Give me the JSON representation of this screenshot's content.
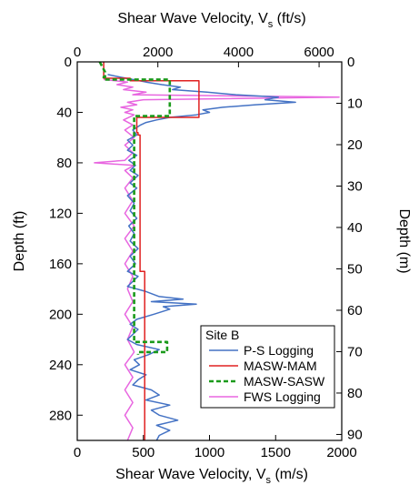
{
  "chart_data": {
    "type": "line",
    "title": "",
    "top_axis": {
      "label_main": "Shear Wave Velocity, V",
      "label_sub": "s",
      "label_unit": " (ft/s)",
      "range": [
        0,
        6562
      ],
      "ticks": [
        0,
        2000,
        4000,
        6000
      ],
      "tick_labels": [
        "0",
        "2000",
        "4000",
        "6000"
      ]
    },
    "bottom_axis": {
      "label_main": "Shear Wave Velocity, V",
      "label_sub": "s",
      "label_unit": " (m/s)",
      "range": [
        0,
        2000
      ],
      "ticks": [
        0,
        500,
        1000,
        1500,
        2000
      ],
      "tick_labels": [
        "0",
        "500",
        "1000",
        "1500",
        "2000"
      ]
    },
    "left_axis": {
      "label": "Depth (ft)",
      "range": [
        0,
        300
      ],
      "reversed": true,
      "ticks": [
        0,
        40,
        80,
        120,
        160,
        200,
        240,
        280
      ],
      "tick_labels": [
        "0",
        "40",
        "80",
        "120",
        "160",
        "200",
        "240",
        "280"
      ]
    },
    "right_axis": {
      "label": "Depth (m)",
      "range": [
        0,
        91.44
      ],
      "reversed": true,
      "ticks": [
        0,
        10,
        20,
        30,
        40,
        50,
        60,
        70,
        80,
        90
      ],
      "tick_labels": [
        "0",
        "10",
        "20",
        "30",
        "40",
        "50",
        "60",
        "70",
        "80",
        "90"
      ]
    },
    "legend": {
      "title": "Site B",
      "position": "lower-right"
    },
    "series": [
      {
        "name": "P-S Logging",
        "color": "#4472c4",
        "dash": "solid",
        "points": [
          [
            230,
            10
          ],
          [
            320,
            12
          ],
          [
            420,
            14
          ],
          [
            520,
            16
          ],
          [
            640,
            18
          ],
          [
            780,
            20
          ],
          [
            720,
            22
          ],
          [
            980,
            24
          ],
          [
            1200,
            26
          ],
          [
            1520,
            28
          ],
          [
            1420,
            30
          ],
          [
            1650,
            32
          ],
          [
            1350,
            34
          ],
          [
            1100,
            36
          ],
          [
            950,
            38
          ],
          [
            1000,
            40
          ],
          [
            900,
            42
          ],
          [
            700,
            44
          ],
          [
            600,
            46
          ],
          [
            520,
            48
          ],
          [
            480,
            50
          ],
          [
            420,
            54
          ],
          [
            450,
            58
          ],
          [
            380,
            62
          ],
          [
            420,
            66
          ],
          [
            380,
            70
          ],
          [
            450,
            74
          ],
          [
            390,
            78
          ],
          [
            440,
            82
          ],
          [
            400,
            86
          ],
          [
            460,
            90
          ],
          [
            400,
            96
          ],
          [
            450,
            100
          ],
          [
            380,
            106
          ],
          [
            430,
            112
          ],
          [
            400,
            118
          ],
          [
            450,
            124
          ],
          [
            390,
            130
          ],
          [
            430,
            136
          ],
          [
            400,
            142
          ],
          [
            460,
            148
          ],
          [
            400,
            154
          ],
          [
            440,
            160
          ],
          [
            380,
            166
          ],
          [
            460,
            170
          ],
          [
            420,
            174
          ],
          [
            380,
            178
          ],
          [
            520,
            182
          ],
          [
            620,
            186
          ],
          [
            800,
            188
          ],
          [
            560,
            190
          ],
          [
            900,
            192
          ],
          [
            650,
            194
          ],
          [
            700,
            196
          ],
          [
            580,
            200
          ],
          [
            450,
            204
          ],
          [
            400,
            208
          ],
          [
            460,
            212
          ],
          [
            420,
            216
          ],
          [
            380,
            220
          ],
          [
            450,
            224
          ],
          [
            620,
            228
          ],
          [
            540,
            232
          ],
          [
            430,
            236
          ],
          [
            470,
            240
          ],
          [
            400,
            244
          ],
          [
            520,
            248
          ],
          [
            460,
            252
          ],
          [
            420,
            256
          ],
          [
            560,
            260
          ],
          [
            620,
            264
          ],
          [
            520,
            268
          ],
          [
            700,
            272
          ],
          [
            560,
            276
          ],
          [
            620,
            280
          ],
          [
            760,
            284
          ],
          [
            600,
            288
          ],
          [
            700,
            292
          ],
          [
            620,
            296
          ],
          [
            600,
            300
          ]
        ]
      },
      {
        "name": "MASW-MAM",
        "color": "#e02020",
        "dash": "solid",
        "points": [
          [
            200,
            0
          ],
          [
            200,
            13
          ],
          [
            400,
            13
          ],
          [
            400,
            15
          ],
          [
            920,
            15
          ],
          [
            920,
            44
          ],
          [
            450,
            44
          ],
          [
            450,
            56
          ],
          [
            460,
            56
          ],
          [
            460,
            58
          ],
          [
            475,
            58
          ],
          [
            475,
            166
          ],
          [
            510,
            166
          ],
          [
            510,
            300
          ]
        ]
      },
      {
        "name": "MASW-SASW",
        "color": "#1a9a1a",
        "dash": "dashed",
        "points": [
          [
            170,
            0
          ],
          [
            210,
            8
          ],
          [
            210,
            12
          ],
          [
            200,
            12
          ],
          [
            200,
            14
          ],
          [
            700,
            14
          ],
          [
            700,
            43
          ],
          [
            430,
            43
          ],
          [
            430,
            222
          ],
          [
            680,
            222
          ],
          [
            680,
            230
          ],
          [
            460,
            230
          ],
          [
            460,
            232
          ]
        ]
      },
      {
        "name": "FWS Logging",
        "color": "#e866e0",
        "dash": "solid",
        "points": [
          [
            200,
            14
          ],
          [
            380,
            16
          ],
          [
            300,
            18
          ],
          [
            420,
            20
          ],
          [
            350,
            22
          ],
          [
            520,
            24
          ],
          [
            420,
            26
          ],
          [
            1980,
            28
          ],
          [
            500,
            30
          ],
          [
            380,
            32
          ],
          [
            450,
            34
          ],
          [
            330,
            36
          ],
          [
            420,
            38
          ],
          [
            360,
            40
          ],
          [
            430,
            42
          ],
          [
            350,
            46
          ],
          [
            420,
            50
          ],
          [
            360,
            54
          ],
          [
            430,
            60
          ],
          [
            360,
            66
          ],
          [
            420,
            72
          ],
          [
            360,
            78
          ],
          [
            130,
            80
          ],
          [
            430,
            82
          ],
          [
            360,
            86
          ],
          [
            420,
            92
          ],
          [
            360,
            100
          ],
          [
            420,
            110
          ],
          [
            360,
            120
          ],
          [
            430,
            130
          ],
          [
            360,
            140
          ],
          [
            420,
            150
          ],
          [
            360,
            160
          ],
          [
            420,
            170
          ],
          [
            380,
            180
          ],
          [
            420,
            190
          ],
          [
            360,
            200
          ],
          [
            420,
            210
          ],
          [
            380,
            220
          ],
          [
            430,
            230
          ],
          [
            360,
            240
          ],
          [
            420,
            250
          ],
          [
            360,
            260
          ],
          [
            420,
            270
          ],
          [
            360,
            280
          ],
          [
            420,
            290
          ],
          [
            380,
            300
          ]
        ]
      }
    ]
  }
}
